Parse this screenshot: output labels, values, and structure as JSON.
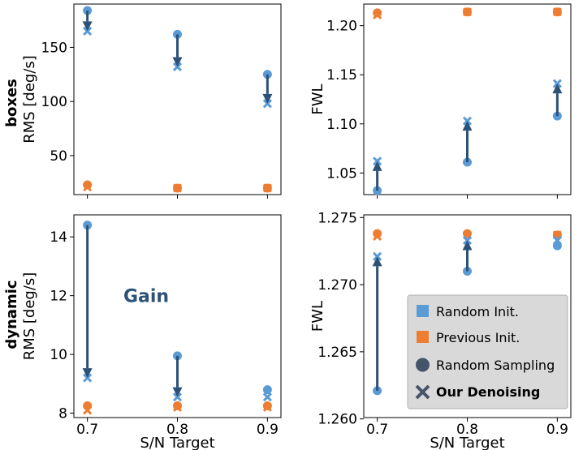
{
  "colors": {
    "random_init": "#5b9bd5",
    "previous_init": "#ed7d31",
    "arrow": "#2c5278",
    "legend_bg": "#d9d9d9",
    "legend_swatch_dark": "#44546a"
  },
  "row_labels": [
    "boxes",
    "dynamic"
  ],
  "legend": {
    "random_init": "Random Init.",
    "previous_init": "Previous Init.",
    "random_sampling": "Random Sampling",
    "our_denoising": "Our Denoising"
  },
  "chart_data": [
    {
      "id": "boxes-rms",
      "type": "scatter",
      "row": "boxes",
      "xlabel": "",
      "ylabel": "RMS [deg/s]",
      "xlim": [
        0.685,
        0.915
      ],
      "ylim": [
        14,
        190
      ],
      "x_ticks": [
        0.7,
        0.8,
        0.9
      ],
      "y_ticks": [
        50,
        100,
        150
      ],
      "y_tick_labels": [
        "50",
        "100",
        "150"
      ],
      "x": [
        0.7,
        0.8,
        0.9
      ],
      "series": [
        {
          "name": "Random Init. / Random Sampling",
          "color": "random_init",
          "marker": "circle",
          "values": [
            184,
            162,
            125
          ]
        },
        {
          "name": "Random Init. / Our Denoising",
          "color": "random_init",
          "marker": "x",
          "values": [
            165,
            132,
            98
          ]
        },
        {
          "name": "Previous Init. / Random Sampling",
          "color": "previous_init",
          "marker": "circle",
          "values": [
            23,
            20,
            20
          ]
        },
        {
          "name": "Previous Init. / Our Denoising",
          "color": "previous_init",
          "marker": "x",
          "values": [
            21,
            20,
            20
          ]
        }
      ],
      "arrows": [
        {
          "x": 0.7,
          "from": 184,
          "to": 165
        },
        {
          "x": 0.8,
          "from": 162,
          "to": 132
        },
        {
          "x": 0.9,
          "from": 125,
          "to": 98
        }
      ]
    },
    {
      "id": "boxes-fwl",
      "type": "scatter",
      "row": "boxes",
      "xlabel": "",
      "ylabel": "FWL",
      "xlim": [
        0.685,
        0.915
      ],
      "ylim": [
        1.028,
        1.222
      ],
      "x_ticks": [
        0.7,
        0.8,
        0.9
      ],
      "y_ticks": [
        1.05,
        1.1,
        1.15,
        1.2
      ],
      "y_tick_labels": [
        "1.05",
        "1.10",
        "1.15",
        "1.20"
      ],
      "x": [
        0.7,
        0.8,
        0.9
      ],
      "series": [
        {
          "name": "Random Init. / Random Sampling",
          "color": "random_init",
          "marker": "circle",
          "values": [
            1.032,
            1.061,
            1.108
          ]
        },
        {
          "name": "Random Init. / Our Denoising",
          "color": "random_init",
          "marker": "x",
          "values": [
            1.062,
            1.103,
            1.141
          ]
        },
        {
          "name": "Previous Init. / Random Sampling",
          "color": "previous_init",
          "marker": "circle",
          "values": [
            1.213,
            1.214,
            1.214
          ]
        },
        {
          "name": "Previous Init. / Our Denoising",
          "color": "previous_init",
          "marker": "x",
          "values": [
            1.211,
            1.214,
            1.214
          ]
        }
      ],
      "arrows": [
        {
          "x": 0.7,
          "from": 1.032,
          "to": 1.062
        },
        {
          "x": 0.8,
          "from": 1.061,
          "to": 1.103
        },
        {
          "x": 0.9,
          "from": 1.108,
          "to": 1.141
        }
      ]
    },
    {
      "id": "dynamic-rms",
      "type": "scatter",
      "row": "dynamic",
      "xlabel": "S/N Target",
      "ylabel": "RMS [deg/s]",
      "xlim": [
        0.685,
        0.915
      ],
      "ylim": [
        7.85,
        14.75
      ],
      "x_ticks": [
        0.7,
        0.8,
        0.9
      ],
      "x_tick_labels": [
        "0.7",
        "0.8",
        "0.9"
      ],
      "y_ticks": [
        8,
        10,
        12,
        14
      ],
      "y_tick_labels": [
        "8",
        "10",
        "12",
        "14"
      ],
      "x": [
        0.7,
        0.8,
        0.9
      ],
      "series": [
        {
          "name": "Random Init. / Random Sampling",
          "color": "random_init",
          "marker": "circle",
          "values": [
            14.4,
            9.95,
            8.8
          ]
        },
        {
          "name": "Random Init. / Our Denoising",
          "color": "random_init",
          "marker": "x",
          "values": [
            9.2,
            8.55,
            8.55
          ]
        },
        {
          "name": "Previous Init. / Random Sampling",
          "color": "previous_init",
          "marker": "circle",
          "values": [
            8.25,
            8.25,
            8.25
          ]
        },
        {
          "name": "Previous Init. / Our Denoising",
          "color": "previous_init",
          "marker": "x",
          "values": [
            8.1,
            8.2,
            8.2
          ]
        }
      ],
      "arrows": [
        {
          "x": 0.7,
          "from": 14.4,
          "to": 9.2
        },
        {
          "x": 0.8,
          "from": 9.95,
          "to": 8.55
        }
      ],
      "annotation": {
        "text": "Gain",
        "x": 0.74,
        "y": 12.0
      }
    },
    {
      "id": "dynamic-fwl",
      "type": "scatter",
      "row": "dynamic",
      "xlabel": "S/N Target",
      "ylabel": "FWL",
      "xlim": [
        0.685,
        0.915
      ],
      "ylim": [
        1.2601,
        1.2752
      ],
      "x_ticks": [
        0.7,
        0.8,
        0.9
      ],
      "x_tick_labels": [
        "0.7",
        "0.8",
        "0.9"
      ],
      "y_ticks": [
        1.26,
        1.265,
        1.27,
        1.275
      ],
      "y_tick_labels": [
        "1.260",
        "1.265",
        "1.270",
        "1.275"
      ],
      "x": [
        0.7,
        0.8,
        0.9
      ],
      "series": [
        {
          "name": "Random Init. / Random Sampling",
          "color": "random_init",
          "marker": "circle",
          "values": [
            1.2621,
            1.271,
            1.2729
          ]
        },
        {
          "name": "Random Init. / Our Denoising",
          "color": "random_init",
          "marker": "x",
          "values": [
            1.2721,
            1.2733,
            1.2733
          ]
        },
        {
          "name": "Previous Init. / Random Sampling",
          "color": "previous_init",
          "marker": "circle",
          "values": [
            1.2738,
            1.2738,
            1.2737
          ]
        },
        {
          "name": "Previous Init. / Our Denoising",
          "color": "previous_init",
          "marker": "x",
          "values": [
            1.2736,
            1.2737,
            1.2737
          ]
        }
      ],
      "arrows": [
        {
          "x": 0.7,
          "from": 1.2621,
          "to": 1.2721
        },
        {
          "x": 0.8,
          "from": 1.271,
          "to": 1.2733
        }
      ]
    }
  ]
}
